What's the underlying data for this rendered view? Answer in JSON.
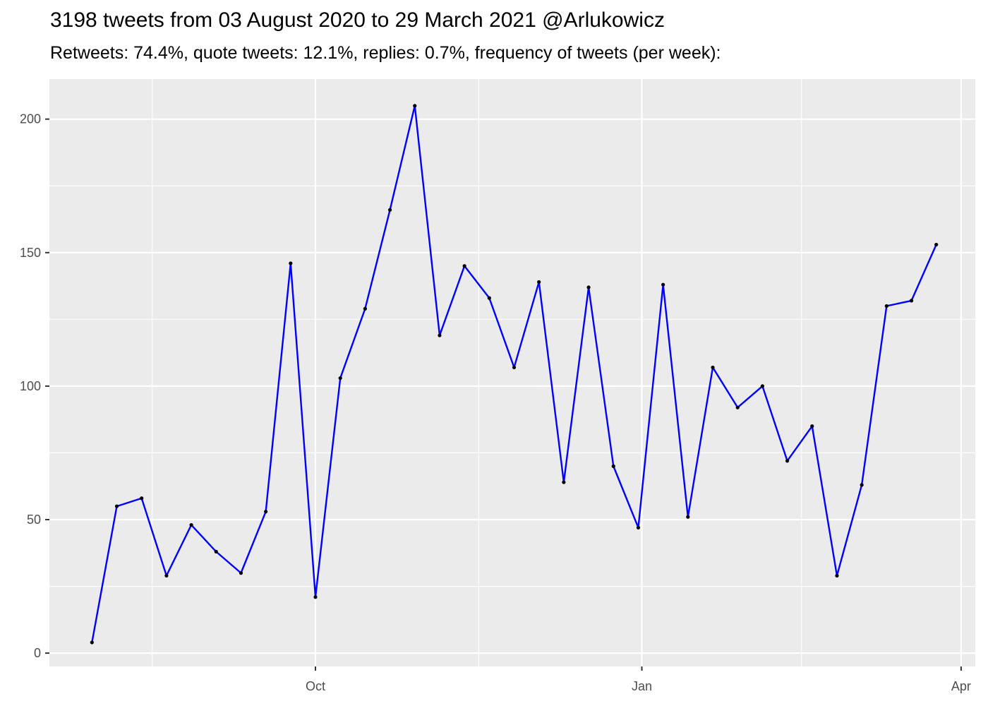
{
  "chart_data": {
    "type": "line",
    "title": "3198 tweets from 03 August 2020 to 29 March 2021 @Arlukowicz",
    "subtitle": "Retweets: 74.4%, quote tweets: 12.1%, replies: 0.7%, frequency of tweets (per week):",
    "xlabel": "",
    "ylabel": "",
    "x_type": "date",
    "xlim": [
      "2020-07-18",
      "2021-04-05"
    ],
    "ylim": [
      -5,
      215
    ],
    "grid": true,
    "x_ticks": [
      {
        "date": "2020-10-01",
        "label": "Oct"
      },
      {
        "date": "2021-01-01",
        "label": "Jan"
      },
      {
        "date": "2021-04-01",
        "label": "Apr"
      }
    ],
    "x_minor_ticks": [
      "2020-08-16",
      "2020-11-16",
      "2021-02-15"
    ],
    "y_ticks": [
      0,
      50,
      100,
      150,
      200
    ],
    "y_minor_ticks": [
      25,
      75,
      125,
      175
    ],
    "colors": {
      "line": "#0000ff",
      "points": "#000000",
      "panel": "#ebebeb",
      "grid": "#ffffff"
    },
    "series": [
      {
        "x": [
          "2020-07-30",
          "2020-08-06",
          "2020-08-13",
          "2020-08-20",
          "2020-08-27",
          "2020-09-03",
          "2020-09-10",
          "2020-09-17",
          "2020-09-24",
          "2020-10-01",
          "2020-10-08",
          "2020-10-15",
          "2020-10-22",
          "2020-10-29",
          "2020-11-05",
          "2020-11-12",
          "2020-11-19",
          "2020-11-26",
          "2020-12-03",
          "2020-12-10",
          "2020-12-17",
          "2020-12-24",
          "2020-12-31",
          "2021-01-07",
          "2021-01-14",
          "2021-01-21",
          "2021-01-28",
          "2021-02-04",
          "2021-02-11",
          "2021-02-18",
          "2021-02-25",
          "2021-03-04",
          "2021-03-11",
          "2021-03-18",
          "2021-03-25"
        ],
        "values": [
          4,
          55,
          58,
          29,
          48,
          38,
          30,
          53,
          146,
          21,
          103,
          129,
          166,
          205,
          119,
          145,
          133,
          107,
          139,
          64,
          137,
          70,
          47,
          138,
          51,
          107,
          92,
          100,
          72,
          85,
          29,
          63,
          130,
          132,
          153
        ]
      }
    ]
  }
}
